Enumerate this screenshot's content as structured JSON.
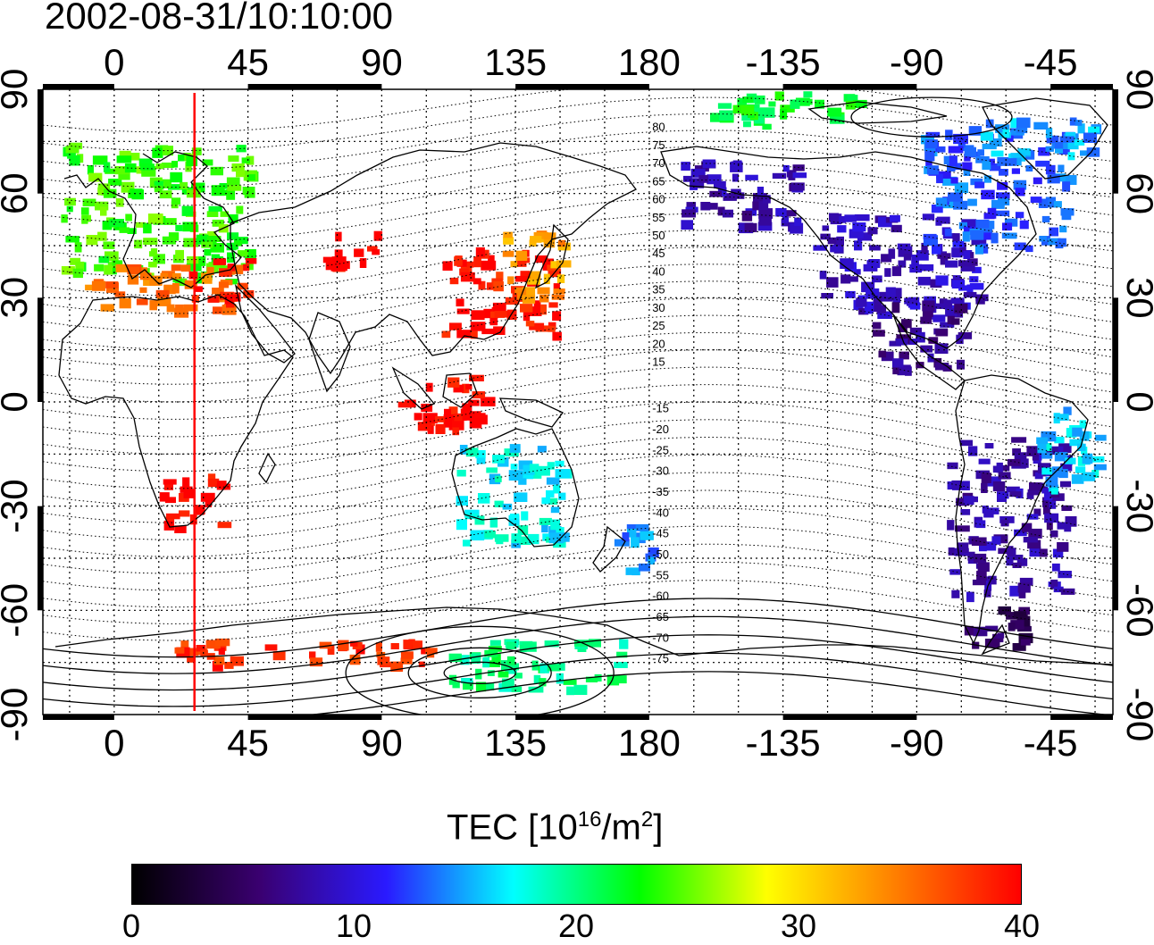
{
  "title": "2002-08-31/10:10:00",
  "colorbar": {
    "label_prefix": "TEC  [10",
    "label_exp1": "16",
    "label_mid": "/m",
    "label_exp2": "2",
    "label_suffix": "]",
    "ticks": [
      "0",
      "10",
      "20",
      "30",
      "40"
    ],
    "min": 0,
    "max": 40,
    "stops": [
      "#000000",
      "#3a0070",
      "#2a1aff",
      "#00ffff",
      "#00ff00",
      "#ffff00",
      "#ff8000",
      "#ff0000"
    ]
  },
  "map": {
    "lon_ticks_top": [
      "0",
      "45",
      "90",
      "135",
      "180",
      "-135",
      "-90",
      "-45"
    ],
    "lon_ticks_bottom": [
      "0",
      "45",
      "90",
      "135",
      "180",
      "-135",
      "-90",
      "-45"
    ],
    "lat_ticks_left": [
      "90",
      "60",
      "30",
      "0",
      "-30",
      "-60",
      "-90"
    ],
    "lat_ticks_right": [
      "90",
      "60",
      "30",
      "0",
      "-30",
      "-60",
      "-90"
    ],
    "lon_tick_values": [
      0,
      45,
      90,
      135,
      180,
      225,
      270,
      315
    ],
    "lat_tick_values": [
      90,
      60,
      30,
      0,
      -30,
      -60,
      -90
    ],
    "lon_range": [
      -24,
      336
    ],
    "lat_range": [
      -90,
      90
    ],
    "marked_meridian_lon": 27,
    "magnetic_lat_labels_north": [
      "80",
      "75",
      "70",
      "65",
      "60",
      "55",
      "50",
      "45",
      "40",
      "35",
      "30",
      "25",
      "20",
      "15"
    ],
    "magnetic_lat_labels_south": [
      "-15",
      "-20",
      "-25",
      "-30",
      "-35",
      "-40",
      "-45",
      "-50",
      "-55",
      "-60",
      "-65",
      "-70",
      "-75"
    ],
    "tec_regions": [
      {
        "name": "europe",
        "lon": [
          -18,
          45
        ],
        "lat": [
          35,
          75
        ],
        "tec": 24
      },
      {
        "name": "europe-south",
        "lon": [
          -10,
          40
        ],
        "lat": [
          27,
          40
        ],
        "tec": 35
      },
      {
        "name": "mediterranean",
        "lon": [
          25,
          45
        ],
        "lat": [
          30,
          42
        ],
        "tec": 39
      },
      {
        "name": "central-asia",
        "lon": [
          70,
          90
        ],
        "lat": [
          40,
          50
        ],
        "tec": 40
      },
      {
        "name": "east-asia",
        "lon": [
          110,
          148
        ],
        "lat": [
          20,
          45
        ],
        "tec": 39
      },
      {
        "name": "japan",
        "lon": [
          130,
          150
        ],
        "lat": [
          30,
          50
        ],
        "tec": 33
      },
      {
        "name": "se-asia",
        "lon": [
          95,
          125
        ],
        "lat": [
          -8,
          8
        ],
        "tec": 40
      },
      {
        "name": "south-africa",
        "lon": [
          15,
          35
        ],
        "lat": [
          -36,
          -20
        ],
        "tec": 40
      },
      {
        "name": "australia",
        "lon": [
          115,
          150
        ],
        "lat": [
          -40,
          -12
        ],
        "tec": 17
      },
      {
        "name": "new-zealand",
        "lon": [
          165,
          180
        ],
        "lat": [
          -48,
          -35
        ],
        "tec": 14
      },
      {
        "name": "alaska",
        "lon": [
          190,
          230
        ],
        "lat": [
          50,
          70
        ],
        "tec": 8
      },
      {
        "name": "north-america",
        "lon": [
          235,
          290
        ],
        "lat": [
          25,
          55
        ],
        "tec": 9
      },
      {
        "name": "canada-east",
        "lon": [
          270,
          320
        ],
        "lat": [
          45,
          80
        ],
        "tec": 13
      },
      {
        "name": "central-america",
        "lon": [
          255,
          285
        ],
        "lat": [
          10,
          30
        ],
        "tec": 7
      },
      {
        "name": "south-america",
        "lon": [
          280,
          320
        ],
        "lat": [
          -55,
          -10
        ],
        "tec": 8
      },
      {
        "name": "patagonia",
        "lon": [
          285,
          305
        ],
        "lat": [
          -72,
          -58
        ],
        "tec": 5
      },
      {
        "name": "brazil-east",
        "lon": [
          310,
          330
        ],
        "lat": [
          -25,
          0
        ],
        "tec": 16
      },
      {
        "name": "antarctica-ring",
        "lon": [
          20,
          110
        ],
        "lat": [
          -75,
          -68
        ],
        "tec": 38
      },
      {
        "name": "antarctica-east",
        "lon": [
          110,
          170
        ],
        "lat": [
          -82,
          -68
        ],
        "tec": 20
      },
      {
        "name": "arctic",
        "lon": [
          200,
          250
        ],
        "lat": [
          80,
          90
        ],
        "tec": 22
      },
      {
        "name": "greenland",
        "lon": [
          290,
          330
        ],
        "lat": [
          70,
          82
        ],
        "tec": 15
      }
    ],
    "grid": "on"
  }
}
